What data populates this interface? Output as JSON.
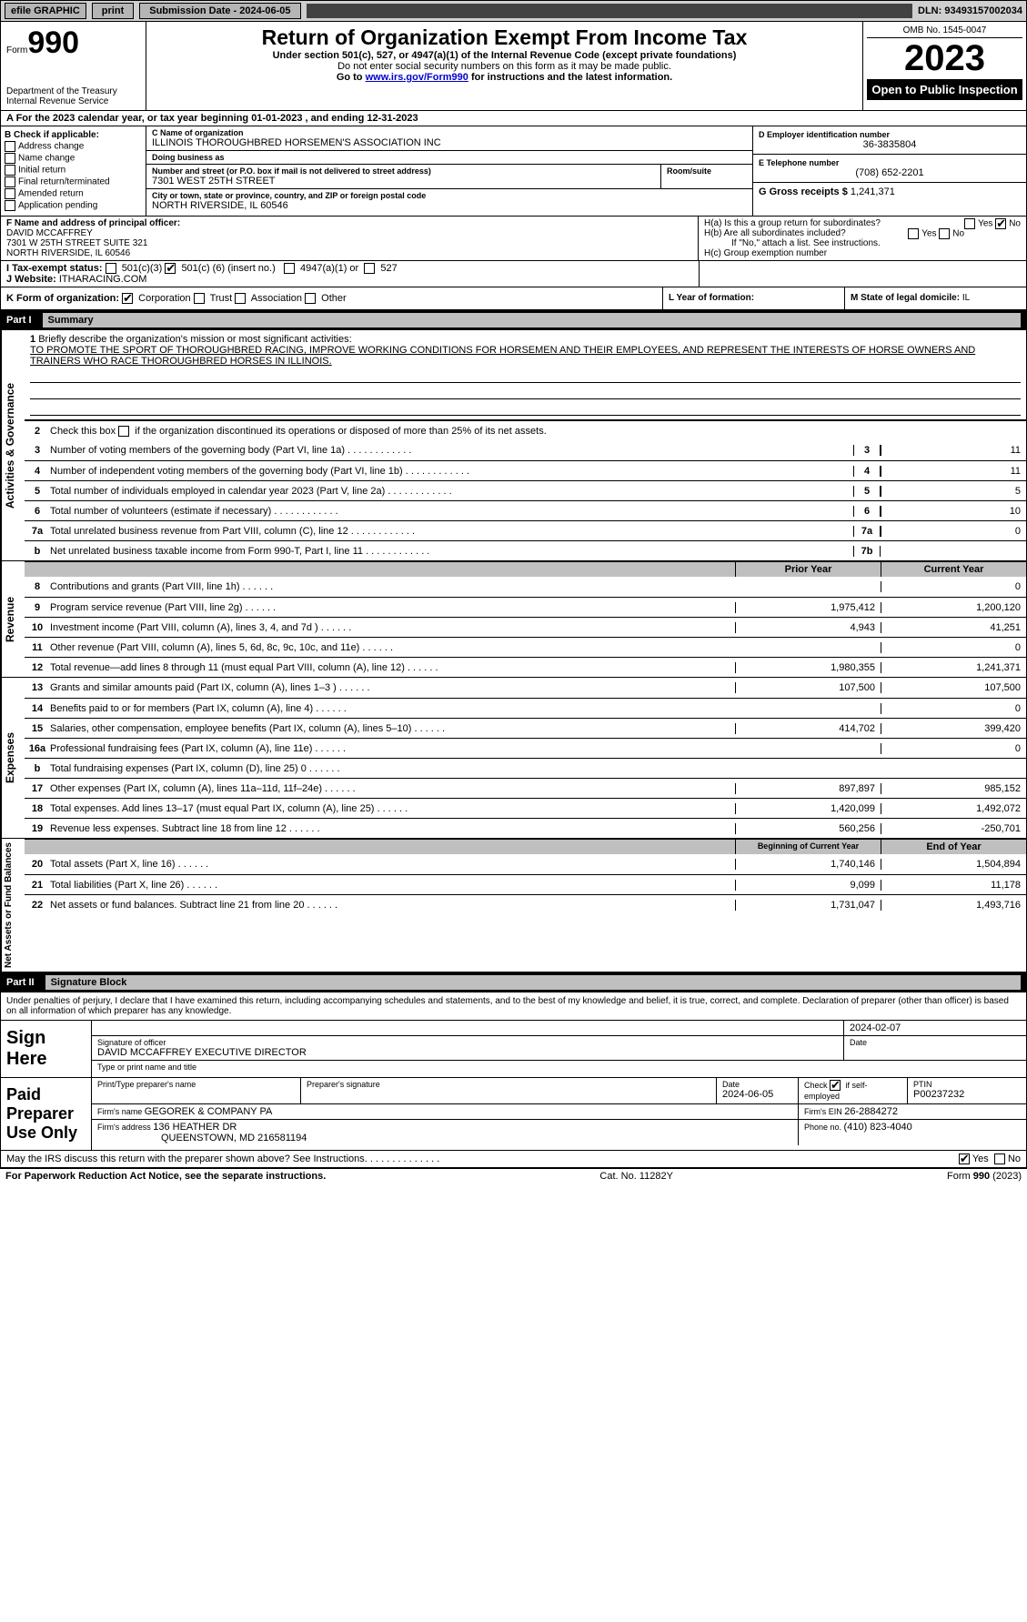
{
  "topbar": {
    "efile": "efile GRAPHIC",
    "print": "print",
    "sub_label": "Submission Date - 2024-06-05",
    "dln": "DLN: 93493157002034"
  },
  "header": {
    "form_word": "Form",
    "form_number": "990",
    "dept": "Department of the Treasury",
    "irs": "Internal Revenue Service",
    "title": "Return of Organization Exempt From Income Tax",
    "subtitle": "Under section 501(c), 527, or 4947(a)(1) of the Internal Revenue Code (except private foundations)",
    "warn": "Do not enter social security numbers on this form as it may be made public.",
    "goto_pre": "Go to ",
    "goto_link": "www.irs.gov/Form990",
    "goto_post": " for instructions and the latest information.",
    "omb": "OMB No. 1545-0047",
    "year": "2023",
    "public": "Open to Public Inspection"
  },
  "lineA": "A For the 2023 calendar year, or tax year beginning 01-01-2023   , and ending 12-31-2023",
  "boxB": {
    "label": "B Check if applicable:",
    "items": [
      "Address change",
      "Name change",
      "Initial return",
      "Final return/terminated",
      "Amended return",
      "Application pending"
    ]
  },
  "boxC": {
    "name_lbl": "C Name of organization",
    "name": "ILLINOIS THOROUGHBRED HORSEMEN'S ASSOCIATION INC",
    "dba_lbl": "Doing business as",
    "dba": "",
    "addr_lbl": "Number and street (or P.O. box if mail is not delivered to street address)",
    "addr": "7301 WEST 25TH STREET",
    "room_lbl": "Room/suite",
    "room": "",
    "city_lbl": "City or town, state or province, country, and ZIP or foreign postal code",
    "city": "NORTH RIVERSIDE, IL  60546"
  },
  "boxD": {
    "ein_lbl": "D Employer identification number",
    "ein": "36-3835804",
    "tel_lbl": "E Telephone number",
    "tel": "(708) 652-2201",
    "gross_lbl": "G Gross receipts $ ",
    "gross": "1,241,371"
  },
  "boxF": {
    "label": "F Name and address of principal officer:",
    "name": "DAVID MCCAFFREY",
    "addr1": "7301 W 25TH STREET SUITE 321",
    "addr2": "NORTH RIVERSIDE, IL  60546"
  },
  "boxH": {
    "a": "H(a)  Is this a group return for subordinates?",
    "b": "H(b)  Are all subordinates included?",
    "b_note": "If \"No,\" attach a list. See instructions.",
    "c": "H(c)  Group exemption number ",
    "yes": "Yes",
    "no": "No"
  },
  "lineI_lbl": "I   Tax-exempt status:",
  "lineI_501c3": "501(c)(3)",
  "lineI_501c": "501(c) (",
  "lineI_501c_n": "6",
  "lineI_501c_ins": ") (insert no.)",
  "lineI_4947": "4947(a)(1) or",
  "lineI_527": "527",
  "lineJ_lbl": "J   Website: ",
  "lineJ_val": "ITHARACING.COM",
  "lineK_lbl": "K Form of organization: ",
  "lineK_corp": "Corporation",
  "lineK_trust": "Trust",
  "lineK_assoc": "Association",
  "lineK_other": "Other",
  "lineL_lbl": "L Year of formation:",
  "lineL_val": "",
  "lineM_lbl": "M State of legal domicile: ",
  "lineM_val": "IL",
  "partI": {
    "label": "Part I",
    "title": "Summary"
  },
  "mission": {
    "num": "1",
    "lbl": "Briefly describe the organization's mission or most significant activities:",
    "text": "TO PROMOTE THE SPORT OF THOROUGHBRED RACING, IMPROVE WORKING CONDITIONS FOR HORSEMEN AND THEIR EMPLOYEES, AND REPRESENT THE INTERESTS OF HORSE OWNERS AND TRAINERS WHO RACE THOROUGHBRED HORSES IN ILLINOIS."
  },
  "line2": {
    "num": "2",
    "desc": "Check this box        if the organization discontinued its operations or disposed of more than 25% of its net assets."
  },
  "gov_lines": [
    {
      "num": "3",
      "desc": "Number of voting members of the governing body (Part VI, line 1a)",
      "box": "3",
      "val": "11"
    },
    {
      "num": "4",
      "desc": "Number of independent voting members of the governing body (Part VI, line 1b)",
      "box": "4",
      "val": "11"
    },
    {
      "num": "5",
      "desc": "Total number of individuals employed in calendar year 2023 (Part V, line 2a)",
      "box": "5",
      "val": "5"
    },
    {
      "num": "6",
      "desc": "Total number of volunteers (estimate if necessary)",
      "box": "6",
      "val": "10"
    },
    {
      "num": "7a",
      "desc": "Total unrelated business revenue from Part VIII, column (C), line 12",
      "box": "7a",
      "val": "0"
    },
    {
      "num": "b",
      "desc": "Net unrelated business taxable income from Form 990-T, Part I, line 11",
      "box": "7b",
      "val": ""
    }
  ],
  "revenue_hdr_py": "Prior Year",
  "revenue_hdr_cy": "Current Year",
  "revenue_lines": [
    {
      "num": "8",
      "desc": "Contributions and grants (Part VIII, line 1h)",
      "py": "",
      "cy": "0"
    },
    {
      "num": "9",
      "desc": "Program service revenue (Part VIII, line 2g)",
      "py": "1,975,412",
      "cy": "1,200,120"
    },
    {
      "num": "10",
      "desc": "Investment income (Part VIII, column (A), lines 3, 4, and 7d )",
      "py": "4,943",
      "cy": "41,251"
    },
    {
      "num": "11",
      "desc": "Other revenue (Part VIII, column (A), lines 5, 6d, 8c, 9c, 10c, and 11e)",
      "py": "",
      "cy": "0"
    },
    {
      "num": "12",
      "desc": "Total revenue—add lines 8 through 11 (must equal Part VIII, column (A), line 12)",
      "py": "1,980,355",
      "cy": "1,241,371"
    }
  ],
  "expense_lines": [
    {
      "num": "13",
      "desc": "Grants and similar amounts paid (Part IX, column (A), lines 1–3 )",
      "py": "107,500",
      "cy": "107,500"
    },
    {
      "num": "14",
      "desc": "Benefits paid to or for members (Part IX, column (A), line 4)",
      "py": "",
      "cy": "0"
    },
    {
      "num": "15",
      "desc": "Salaries, other compensation, employee benefits (Part IX, column (A), lines 5–10)",
      "py": "414,702",
      "cy": "399,420"
    },
    {
      "num": "16a",
      "desc": "Professional fundraising fees (Part IX, column (A), line 11e)",
      "py": "",
      "cy": "0"
    },
    {
      "num": "b",
      "desc": "Total fundraising expenses (Part IX, column (D), line 25) 0",
      "py": "SHADE",
      "cy": "SHADE"
    },
    {
      "num": "17",
      "desc": "Other expenses (Part IX, column (A), lines 11a–11d, 11f–24e)",
      "py": "897,897",
      "cy": "985,152"
    },
    {
      "num": "18",
      "desc": "Total expenses. Add lines 13–17 (must equal Part IX, column (A), line 25)",
      "py": "1,420,099",
      "cy": "1,492,072"
    },
    {
      "num": "19",
      "desc": "Revenue less expenses. Subtract line 18 from line 12",
      "py": "560,256",
      "cy": "-250,701"
    }
  ],
  "na_hdr_py": "Beginning of Current Year",
  "na_hdr_cy": "End of Year",
  "na_lines": [
    {
      "num": "20",
      "desc": "Total assets (Part X, line 16)",
      "py": "1,740,146",
      "cy": "1,504,894"
    },
    {
      "num": "21",
      "desc": "Total liabilities (Part X, line 26)",
      "py": "9,099",
      "cy": "11,178"
    },
    {
      "num": "22",
      "desc": "Net assets or fund balances. Subtract line 21 from line 20",
      "py": "1,731,047",
      "cy": "1,493,716"
    }
  ],
  "vlabels": {
    "gov": "Activities & Governance",
    "rev": "Revenue",
    "exp": "Expenses",
    "na": "Net Assets or Fund Balances"
  },
  "partII": {
    "label": "Part II",
    "title": "Signature Block"
  },
  "sig_decl": "Under penalties of perjury, I declare that I have examined this return, including accompanying schedules and statements, and to the best of my knowledge and belief, it is true, correct, and complete. Declaration of preparer (other than officer) is based on all information of which preparer has any knowledge.",
  "sign_here": "Sign Here",
  "sig_off_lbl": "Signature of officer",
  "sig_off_val": "DAVID MCCAFFREY  EXECUTIVE DIRECTOR",
  "sig_off_type": "Type or print name and title",
  "sig_date_lbl": "Date",
  "sig_date": "2024-02-07",
  "paid": "Paid Preparer Use Only",
  "prep_name_lbl": "Print/Type preparer's name",
  "prep_name": "",
  "prep_sig_lbl": "Preparer's signature",
  "prep_date_lbl": "Date",
  "prep_date": "2024-06-05",
  "prep_chk_lbl": "Check        if self-employed",
  "prep_ptin_lbl": "PTIN",
  "prep_ptin": "P00237232",
  "firm_name_lbl": "Firm's name   ",
  "firm_name": "GEGOREK & COMPANY PA",
  "firm_ein_lbl": "Firm's EIN  ",
  "firm_ein": "26-2884272",
  "firm_addr_lbl": "Firm's address ",
  "firm_addr1": "136 HEATHER DR",
  "firm_addr2": "QUEENSTOWN, MD  216581194",
  "firm_phone_lbl": "Phone no. ",
  "firm_phone": "(410) 823-4040",
  "discuss": "May the IRS discuss this return with the preparer shown above? See Instructions.",
  "footer_pra": "For Paperwork Reduction Act Notice, see the separate instructions.",
  "footer_cat": "Cat. No. 11282Y",
  "footer_form": "Form 990 (2023)"
}
